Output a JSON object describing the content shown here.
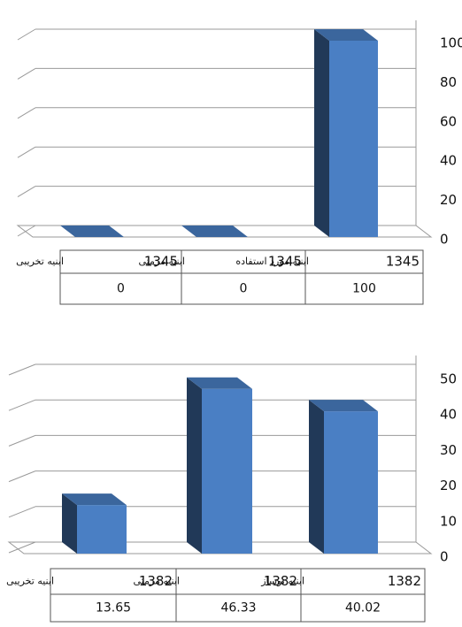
{
  "chart_data": [
    {
      "type": "bar",
      "categories": [
        "ابنیه تخریبی",
        "ابنیه مرمتی",
        "ابنیه مورد استفاده"
      ],
      "years": [
        "1345",
        "1345",
        "1345"
      ],
      "values": [
        0,
        0,
        100
      ],
      "ylim": [
        0,
        100
      ],
      "yticks": [
        0,
        20,
        40,
        60,
        80,
        100
      ],
      "grid": true,
      "color": "#4a7fc4"
    },
    {
      "type": "bar",
      "categories": [
        "ابنیه تخریبی",
        "ابنیه مرمتی",
        "ابنیه نوساز"
      ],
      "years": [
        "1382",
        "1382",
        "1382"
      ],
      "values": [
        13.65,
        46.33,
        40.02
      ],
      "ylim": [
        0,
        50
      ],
      "yticks": [
        0,
        10,
        20,
        30,
        40,
        50
      ],
      "grid": true,
      "color": "#4a7fc4"
    }
  ]
}
